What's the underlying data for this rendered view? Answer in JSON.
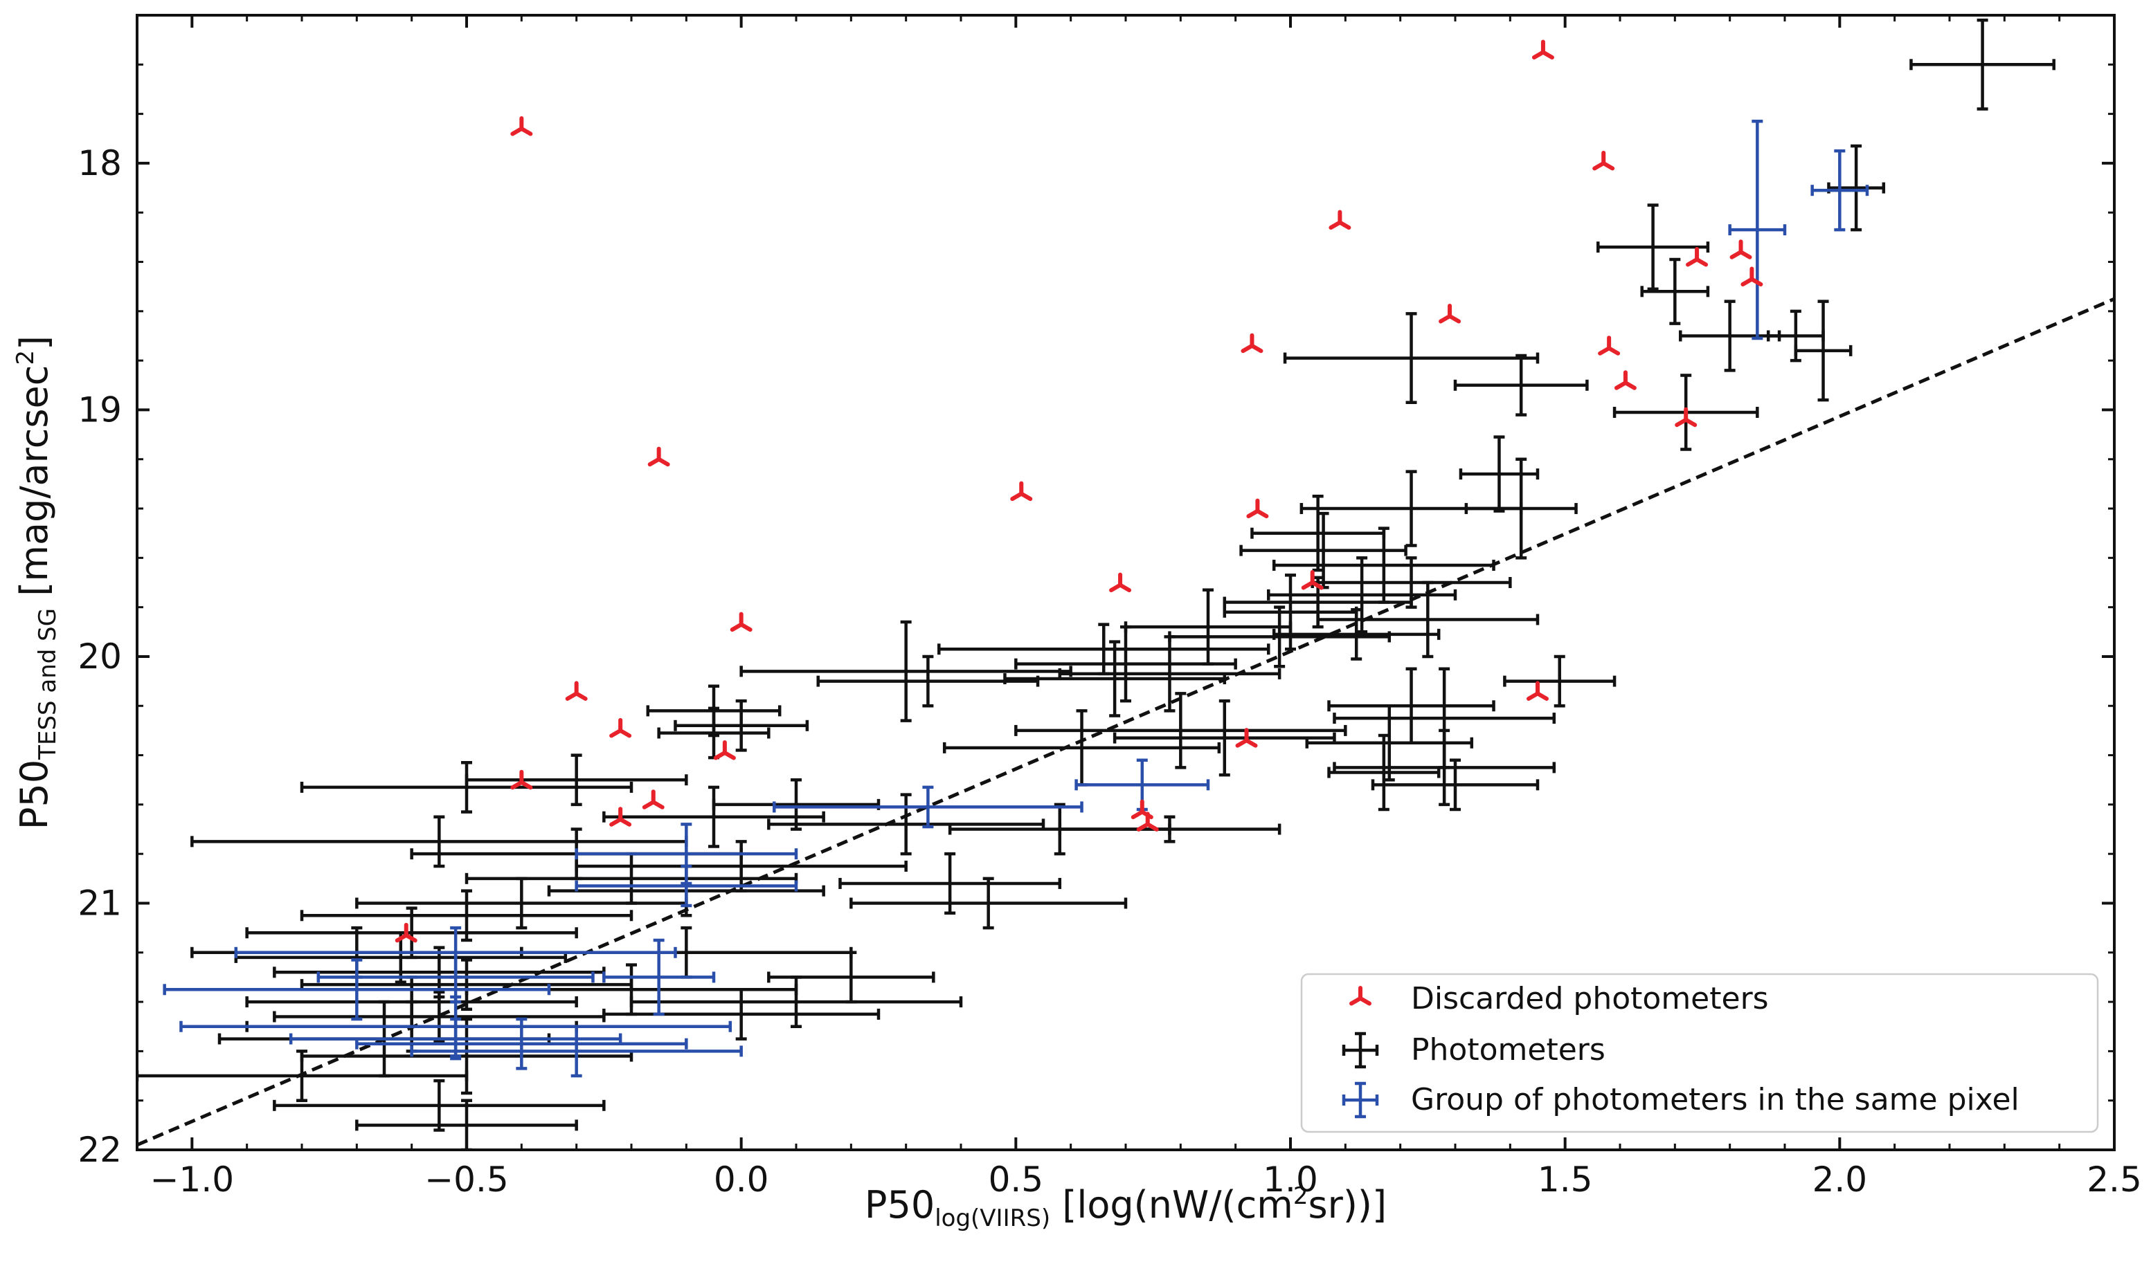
{
  "chart_data": {
    "type": "scatter",
    "xlabel": {
      "main": "P50",
      "sub": "log(VIIRS)",
      "rest": " [log(nW/(cm",
      "sup": "2",
      "end": "sr))]"
    },
    "ylabel": {
      "main": "P50",
      "sub": "TESS and SG",
      "rest": " [mag/arcsec",
      "sup": "2",
      "end": "]"
    },
    "xlim": [
      -1.1,
      2.5
    ],
    "ylim": [
      22,
      17.4
    ],
    "y_inverted": true,
    "x_ticks": [
      -1.0,
      -0.5,
      0.0,
      0.5,
      1.0,
      1.5,
      2.0,
      2.5
    ],
    "x_tick_labels": [
      "−1.0",
      "−0.5",
      "0.0",
      "0.5",
      "1.0",
      "1.5",
      "2.0",
      "2.5"
    ],
    "y_ticks": [
      18,
      19,
      20,
      21,
      22
    ],
    "y_tick_labels": [
      "18",
      "19",
      "20",
      "21",
      "22"
    ],
    "reference_line": {
      "style": "dashed",
      "color": "#111111",
      "points": [
        [
          -1.1,
          21.98
        ],
        [
          2.5,
          18.55
        ]
      ]
    },
    "legend": {
      "position": "lower right",
      "entries": [
        {
          "label": "Discarded photometers",
          "marker": "tri",
          "color": "#e8222a"
        },
        {
          "label": "Photometers",
          "marker": "errorbar",
          "color": "#111111"
        },
        {
          "label": "Group of photometers in the same pixel",
          "marker": "errorbar",
          "color": "#2a4faa"
        }
      ]
    },
    "series": [
      {
        "name": "Discarded photometers",
        "color": "#e8222a",
        "points": [
          [
            -0.4,
            17.86
          ],
          [
            1.46,
            17.55
          ],
          [
            1.57,
            18.0
          ],
          [
            1.09,
            18.24
          ],
          [
            1.74,
            18.39
          ],
          [
            1.82,
            18.36
          ],
          [
            1.84,
            18.47
          ],
          [
            1.29,
            18.62
          ],
          [
            0.93,
            18.74
          ],
          [
            1.58,
            18.75
          ],
          [
            1.61,
            18.89
          ],
          [
            1.72,
            19.04
          ],
          [
            -0.15,
            19.2
          ],
          [
            0.51,
            19.34
          ],
          [
            0.94,
            19.41
          ],
          [
            0.69,
            19.71
          ],
          [
            1.04,
            19.7
          ],
          [
            0.0,
            19.87
          ],
          [
            -0.3,
            20.15
          ],
          [
            -0.22,
            20.3
          ],
          [
            -0.03,
            20.39
          ],
          [
            0.92,
            20.34
          ],
          [
            1.45,
            20.15
          ],
          [
            -0.4,
            20.51
          ],
          [
            -0.16,
            20.59
          ],
          [
            -0.22,
            20.66
          ],
          [
            0.73,
            20.63
          ],
          [
            0.74,
            20.68
          ],
          [
            -0.61,
            21.13
          ]
        ]
      },
      {
        "name": "Photometers",
        "color": "#111111",
        "points": [
          [
            2.26,
            17.6,
            0.13,
            0.18
          ],
          [
            2.03,
            18.1,
            0.05,
            0.17
          ],
          [
            1.66,
            18.34,
            0.1,
            0.17
          ],
          [
            1.7,
            18.52,
            0.06,
            0.13
          ],
          [
            1.8,
            18.7,
            0.09,
            0.14
          ],
          [
            1.92,
            18.7,
            0.05,
            0.1
          ],
          [
            1.97,
            18.76,
            0.05,
            0.2
          ],
          [
            1.22,
            18.79,
            0.23,
            0.18
          ],
          [
            1.42,
            18.9,
            0.12,
            0.12
          ],
          [
            1.72,
            19.01,
            0.13,
            0.15
          ],
          [
            1.38,
            19.26,
            0.07,
            0.15
          ],
          [
            1.42,
            19.4,
            0.1,
            0.2
          ],
          [
            1.22,
            19.4,
            0.2,
            0.15
          ],
          [
            1.05,
            19.5,
            0.12,
            0.15
          ],
          [
            1.06,
            19.57,
            0.15,
            0.15
          ],
          [
            1.17,
            19.63,
            0.2,
            0.15
          ],
          [
            1.22,
            19.7,
            0.18,
            0.1
          ],
          [
            1.13,
            19.75,
            0.17,
            0.15
          ],
          [
            1.05,
            19.78,
            0.17,
            0.1
          ],
          [
            1.0,
            19.82,
            0.12,
            0.15
          ],
          [
            1.25,
            19.85,
            0.2,
            0.15
          ],
          [
            1.12,
            19.91,
            0.15,
            0.1
          ],
          [
            0.85,
            19.88,
            0.15,
            0.15
          ],
          [
            0.98,
            19.92,
            0.2,
            0.12
          ],
          [
            0.66,
            19.97,
            0.3,
            0.1
          ],
          [
            0.7,
            20.03,
            0.2,
            0.15
          ],
          [
            0.78,
            20.07,
            0.2,
            0.15
          ],
          [
            0.68,
            20.09,
            0.2,
            0.15
          ],
          [
            0.3,
            20.06,
            0.3,
            0.2
          ],
          [
            0.34,
            20.1,
            0.2,
            0.1
          ],
          [
            1.49,
            20.1,
            0.1,
            0.1
          ],
          [
            1.22,
            20.2,
            0.15,
            0.15
          ],
          [
            1.28,
            20.25,
            0.2,
            0.2
          ],
          [
            0.8,
            20.3,
            0.3,
            0.15
          ],
          [
            0.62,
            20.37,
            0.25,
            0.15
          ],
          [
            0.88,
            20.33,
            0.2,
            0.15
          ],
          [
            1.18,
            20.35,
            0.15,
            0.15
          ],
          [
            1.28,
            20.45,
            0.2,
            0.15
          ],
          [
            1.17,
            20.47,
            0.1,
            0.15
          ],
          [
            1.3,
            20.52,
            0.15,
            0.1
          ],
          [
            -0.05,
            20.22,
            0.12,
            0.1
          ],
          [
            0.0,
            20.28,
            0.12,
            0.1
          ],
          [
            -0.05,
            20.31,
            0.1,
            0.1
          ],
          [
            -0.3,
            20.5,
            0.2,
            0.1
          ],
          [
            -0.5,
            20.53,
            0.3,
            0.1
          ],
          [
            0.1,
            20.6,
            0.15,
            0.1
          ],
          [
            -0.05,
            20.65,
            0.2,
            0.12
          ],
          [
            0.3,
            20.68,
            0.25,
            0.12
          ],
          [
            0.58,
            20.7,
            0.2,
            0.1
          ],
          [
            0.78,
            20.7,
            0.2,
            0.05
          ],
          [
            -0.55,
            20.75,
            0.45,
            0.1
          ],
          [
            -0.3,
            20.8,
            0.3,
            0.1
          ],
          [
            0.0,
            20.85,
            0.3,
            0.1
          ],
          [
            -0.2,
            20.9,
            0.3,
            0.1
          ],
          [
            0.38,
            20.92,
            0.2,
            0.12
          ],
          [
            0.45,
            21.0,
            0.25,
            0.1
          ],
          [
            -0.1,
            20.95,
            0.25,
            0.1
          ],
          [
            0.2,
            21.3,
            0.15,
            0.1
          ],
          [
            -0.4,
            21.0,
            0.3,
            0.1
          ],
          [
            -0.5,
            21.05,
            0.3,
            0.1
          ],
          [
            -0.6,
            21.12,
            0.3,
            0.1
          ],
          [
            -0.7,
            21.2,
            0.3,
            0.1
          ],
          [
            -0.62,
            21.22,
            0.3,
            0.1
          ],
          [
            -0.55,
            21.28,
            0.3,
            0.1
          ],
          [
            -0.5,
            21.33,
            0.3,
            0.1
          ],
          [
            -0.6,
            21.4,
            0.3,
            0.1
          ],
          [
            -0.55,
            21.46,
            0.3,
            0.1
          ],
          [
            -0.6,
            21.5,
            0.3,
            0.1
          ],
          [
            -0.65,
            21.55,
            0.3,
            0.15
          ],
          [
            -0.5,
            21.62,
            0.3,
            0.15
          ],
          [
            -0.8,
            21.7,
            0.3,
            0.1
          ],
          [
            -0.55,
            21.82,
            0.3,
            0.1
          ],
          [
            -0.5,
            21.9,
            0.2,
            0.1
          ],
          [
            -0.1,
            21.2,
            0.3,
            0.1
          ],
          [
            -0.2,
            21.35,
            0.3,
            0.1
          ],
          [
            0.1,
            21.4,
            0.3,
            0.1
          ],
          [
            0.0,
            21.45,
            0.25,
            0.1
          ]
        ]
      },
      {
        "name": "Group of photometers in the same pixel",
        "color": "#2a4faa",
        "points": [
          [
            1.85,
            18.27,
            0.05,
            0.44
          ],
          [
            2.0,
            18.11,
            0.05,
            0.16
          ],
          [
            0.73,
            20.52,
            0.12,
            0.1
          ],
          [
            0.34,
            20.61,
            0.28,
            0.08
          ],
          [
            -0.1,
            20.8,
            0.2,
            0.12
          ],
          [
            -0.1,
            20.93,
            0.2,
            0.08
          ],
          [
            -0.52,
            21.2,
            0.4,
            0.1
          ],
          [
            -0.52,
            21.3,
            0.25,
            0.1
          ],
          [
            -0.7,
            21.35,
            0.35,
            0.12
          ],
          [
            -0.52,
            21.5,
            0.5,
            0.12
          ],
          [
            -0.52,
            21.55,
            0.3,
            0.08
          ],
          [
            -0.4,
            21.57,
            0.3,
            0.1
          ],
          [
            -0.3,
            21.6,
            0.3,
            0.1
          ],
          [
            -0.15,
            21.3,
            0.1,
            0.15
          ]
        ]
      }
    ]
  }
}
